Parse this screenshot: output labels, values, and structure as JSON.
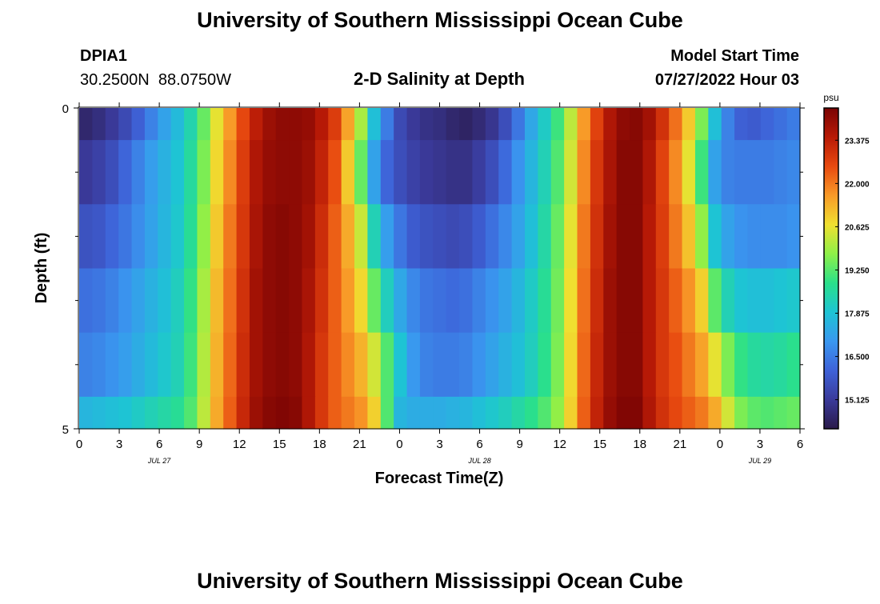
{
  "header": {
    "title": "University of Southern Mississippi Ocean Cube",
    "station_id": "DPIA1",
    "station_coords": "30.2500N  88.0750W",
    "model_label": "Model Start Time",
    "model_start": "07/27/2022 Hour 03",
    "chart_title": "2-D Salinity at Depth"
  },
  "footer": {
    "title": "University of Southern Mississippi Ocean Cube"
  },
  "chart_data": {
    "type": "heatmap",
    "title": "2-D Salinity at Depth",
    "xlabel": "Forecast Time(Z)",
    "ylabel": "Depth (ft)",
    "x_ticks": [
      "0",
      "3",
      "6",
      "9",
      "12",
      "15",
      "18",
      "21",
      "0",
      "3",
      "6",
      "9",
      "12",
      "15",
      "18",
      "21",
      "0",
      "3",
      "6"
    ],
    "date_labels": [
      {
        "label": "JUL 27",
        "hour_index": 6
      },
      {
        "label": "JUL 28",
        "hour_index": 30
      },
      {
        "label": "JUL 29",
        "hour_index": 51
      }
    ],
    "y_ticks": [
      "0",
      "5"
    ],
    "y_range": [
      0,
      5
    ],
    "x_range_hours": [
      0,
      54
    ],
    "colorbar": {
      "unit": "psu",
      "ticks": [
        "23.375",
        "22.000",
        "20.625",
        "19.250",
        "17.875",
        "16.500",
        "15.125"
      ],
      "range": [
        14.2,
        24.4
      ],
      "colors": [
        "#2a1a4a",
        "#3a3a9a",
        "#3e62d8",
        "#3a98f0",
        "#1ec4d4",
        "#2ae08a",
        "#8ef048",
        "#f0e030",
        "#f89a28",
        "#e84a10",
        "#b81a06",
        "#7a0404"
      ]
    },
    "depth_layers": [
      "0-0.5",
      "0.5-1.5",
      "1.5-2.5",
      "2.5-3.5",
      "3.5-4.5",
      "4.5-5"
    ],
    "salinity_rows": [
      [
        14.6,
        14.8,
        15.1,
        15.5,
        16.0,
        16.6,
        17.2,
        17.7,
        18.4,
        19.4,
        20.6,
        21.6,
        22.6,
        23.4,
        23.9,
        24.1,
        24.1,
        24.0,
        23.5,
        22.8,
        21.5,
        20.0,
        17.8,
        16.5,
        15.5,
        15.1,
        14.9,
        14.8,
        14.6,
        14.5,
        14.7,
        15.0,
        15.6,
        16.4,
        17.3,
        18.1,
        19.0,
        20.2,
        21.6,
        22.7,
        23.6,
        24.1,
        24.2,
        23.8,
        23.0,
        22.1,
        21.0,
        19.6,
        17.8,
        16.6,
        16.0,
        15.9,
        16.1,
        16.3,
        16.5
      ],
      [
        15.1,
        15.3,
        15.6,
        16.1,
        16.6,
        17.1,
        17.5,
        17.9,
        18.6,
        19.6,
        20.8,
        21.8,
        22.8,
        23.6,
        24.0,
        24.1,
        24.1,
        23.9,
        23.3,
        22.5,
        21.0,
        19.4,
        17.2,
        16.1,
        15.6,
        15.3,
        15.1,
        15.0,
        14.9,
        14.9,
        15.2,
        15.6,
        16.2,
        16.9,
        17.6,
        18.3,
        19.2,
        20.4,
        21.8,
        22.9,
        23.7,
        24.2,
        24.2,
        23.6,
        22.7,
        21.8,
        20.6,
        19.0,
        17.2,
        16.6,
        16.5,
        16.5,
        16.5,
        16.6,
        16.7
      ],
      [
        15.7,
        15.8,
        16.1,
        16.4,
        16.8,
        17.2,
        17.6,
        18.0,
        18.7,
        19.8,
        21.0,
        22.0,
        22.9,
        23.7,
        24.1,
        24.2,
        24.1,
        23.8,
        23.1,
        22.3,
        21.4,
        20.3,
        18.3,
        17.1,
        16.4,
        15.9,
        15.7,
        15.6,
        15.5,
        15.6,
        15.9,
        16.3,
        16.7,
        17.2,
        17.8,
        18.5,
        19.4,
        20.6,
        22.0,
        23.0,
        23.8,
        24.2,
        24.2,
        23.5,
        22.8,
        22.0,
        21.1,
        19.8,
        17.9,
        17.2,
        16.9,
        16.8,
        16.8,
        16.8,
        16.9
      ],
      [
        16.3,
        16.4,
        16.6,
        16.9,
        17.2,
        17.5,
        17.8,
        18.2,
        18.9,
        20.0,
        21.2,
        22.1,
        23.0,
        23.8,
        24.1,
        24.2,
        24.1,
        23.7,
        23.0,
        22.3,
        21.6,
        20.8,
        19.4,
        18.2,
        17.3,
        16.7,
        16.4,
        16.3,
        16.2,
        16.3,
        16.6,
        16.9,
        17.2,
        17.6,
        18.1,
        18.7,
        19.5,
        20.7,
        22.1,
        23.1,
        23.9,
        24.2,
        24.2,
        23.5,
        22.9,
        22.3,
        21.7,
        20.9,
        19.3,
        18.3,
        17.9,
        17.8,
        17.8,
        17.9,
        18.0
      ],
      [
        16.6,
        16.7,
        16.9,
        17.1,
        17.4,
        17.7,
        18.0,
        18.3,
        19.0,
        20.1,
        21.3,
        22.2,
        23.1,
        23.8,
        24.1,
        24.2,
        24.1,
        23.6,
        22.9,
        22.3,
        21.8,
        21.3,
        20.4,
        19.2,
        17.9,
        17.0,
        16.6,
        16.5,
        16.5,
        16.6,
        16.9,
        17.2,
        17.5,
        17.8,
        18.2,
        18.8,
        19.6,
        20.8,
        22.2,
        23.2,
        23.9,
        24.2,
        24.2,
        23.5,
        22.9,
        22.5,
        22.0,
        21.5,
        20.6,
        19.6,
        18.9,
        18.6,
        18.5,
        18.6,
        18.8
      ],
      [
        17.6,
        17.7,
        17.8,
        17.9,
        18.1,
        18.3,
        18.5,
        18.7,
        19.2,
        20.2,
        21.4,
        22.3,
        23.2,
        23.9,
        24.2,
        24.3,
        24.2,
        23.6,
        22.9,
        22.3,
        22.0,
        21.7,
        20.9,
        19.2,
        17.6,
        17.4,
        17.4,
        17.4,
        17.5,
        17.6,
        17.8,
        18.0,
        18.2,
        18.5,
        18.8,
        19.2,
        19.8,
        20.9,
        22.3,
        23.3,
        24.0,
        24.3,
        24.3,
        23.6,
        23.0,
        22.6,
        22.3,
        22.0,
        21.4,
        20.4,
        19.6,
        19.3,
        19.2,
        19.3,
        19.4
      ]
    ]
  }
}
